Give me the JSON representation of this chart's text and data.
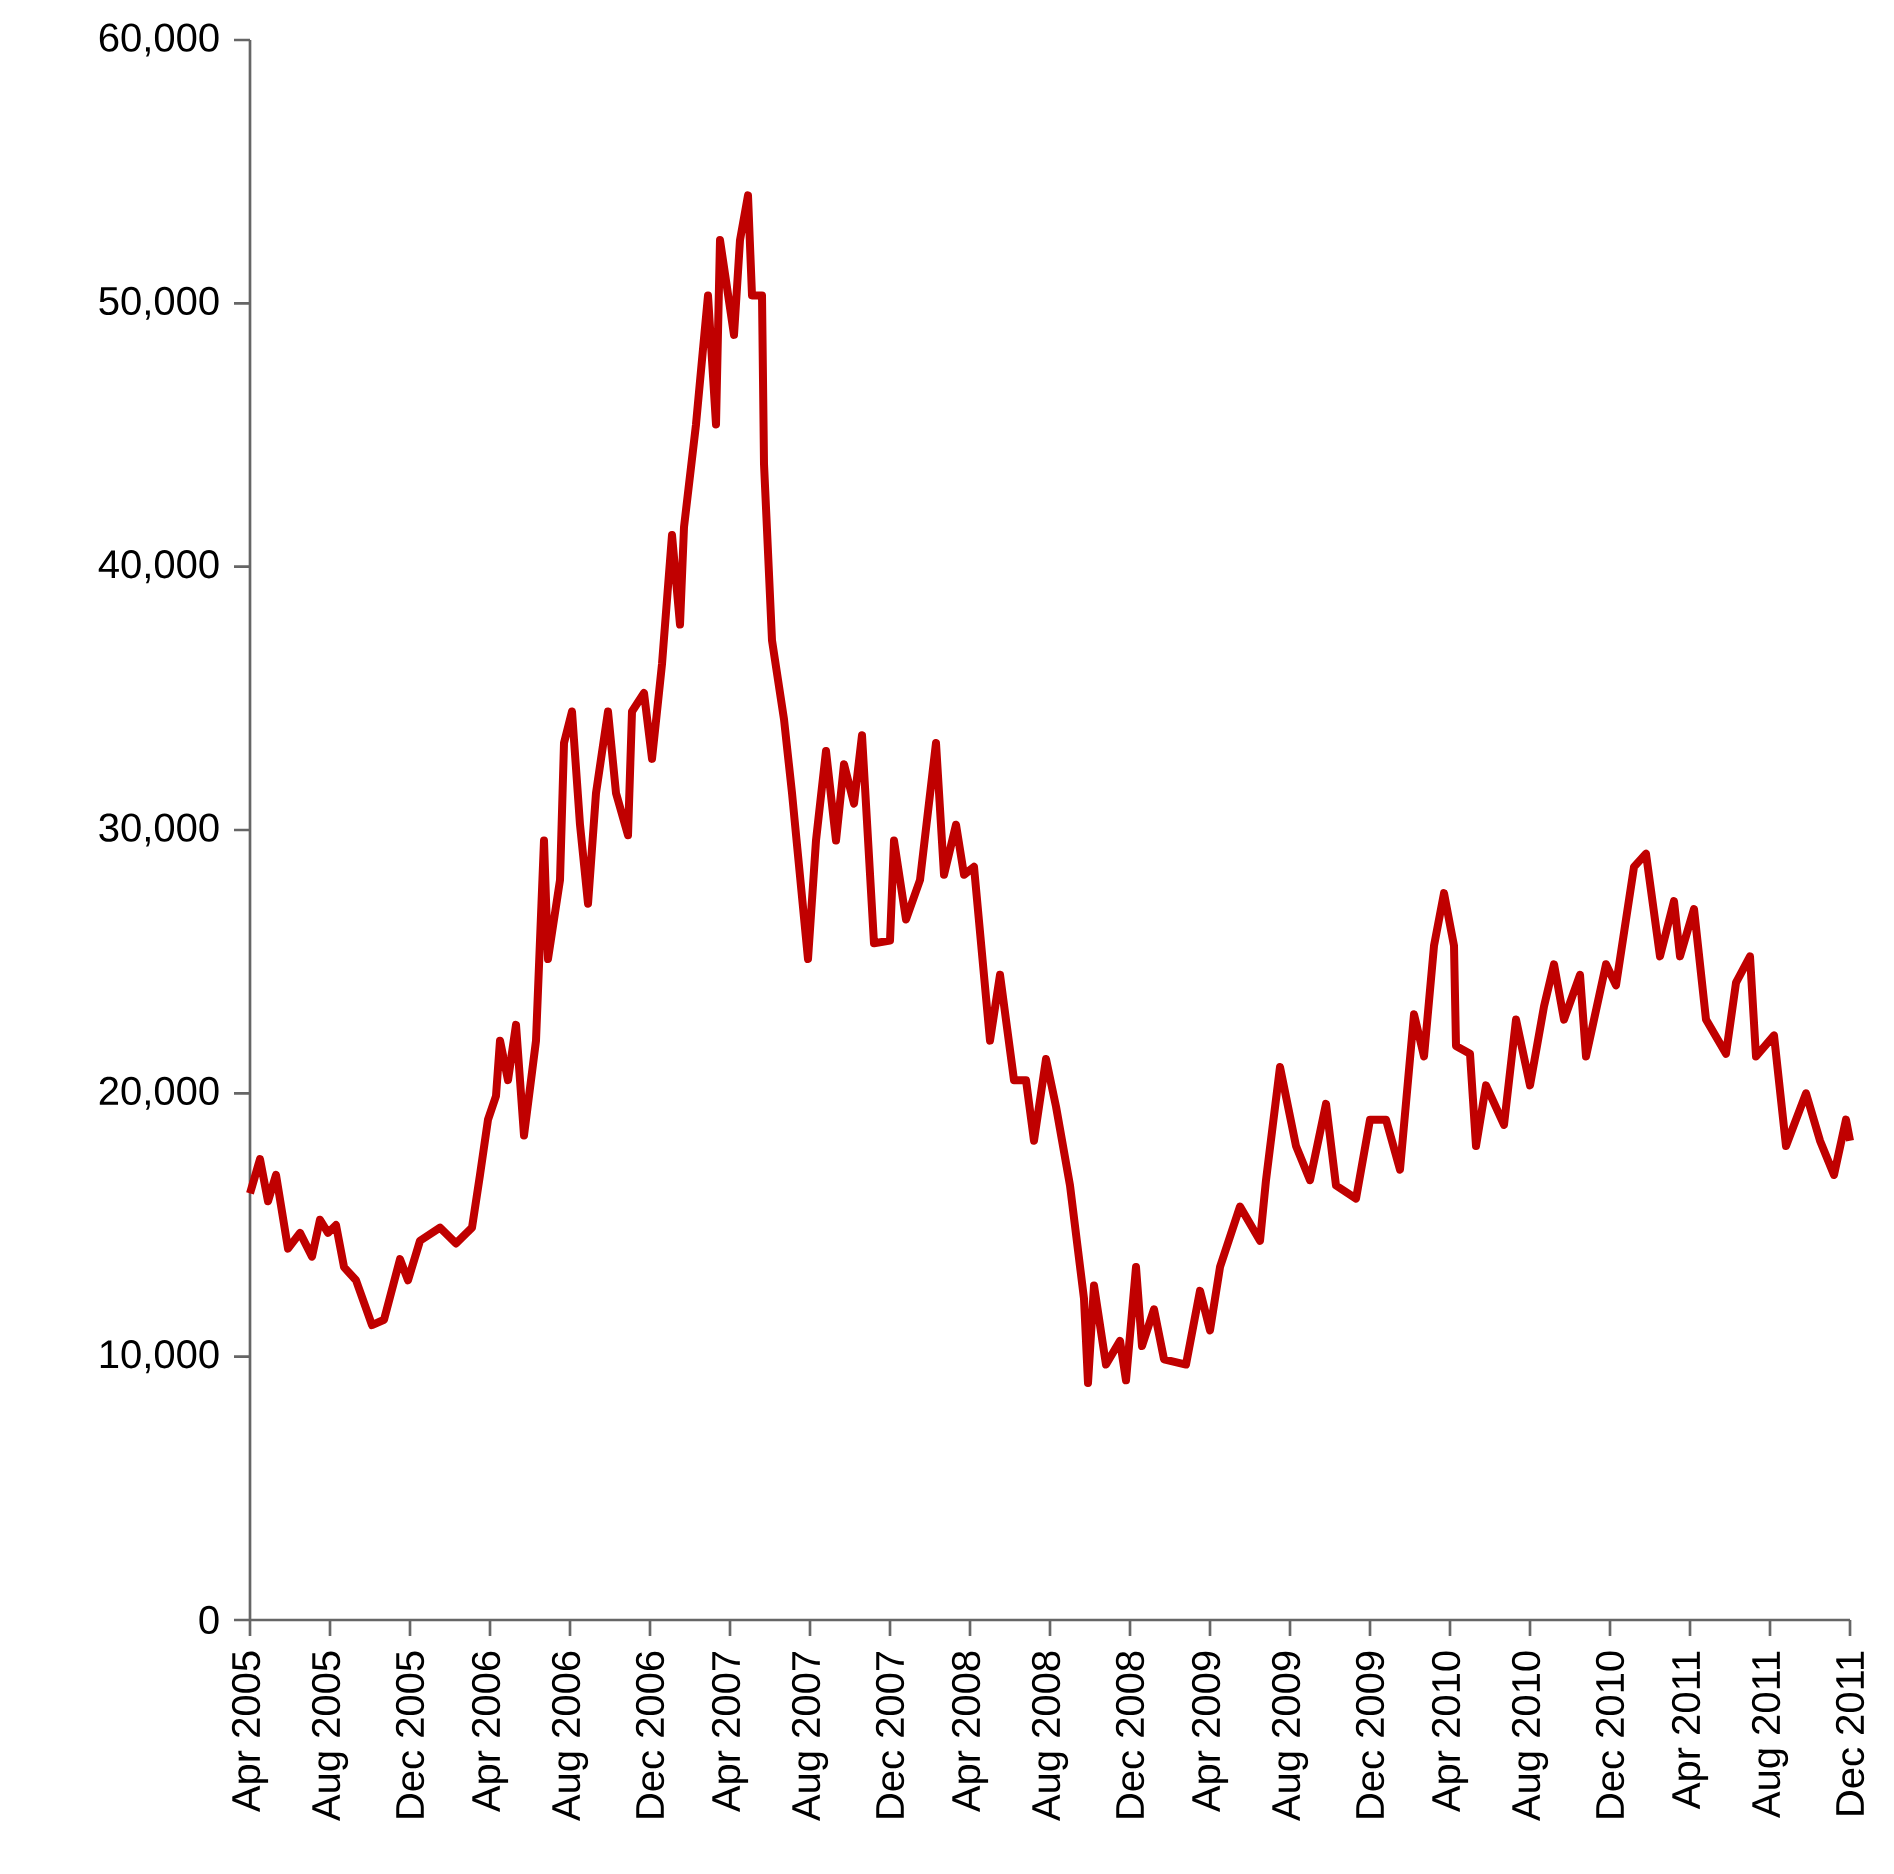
{
  "chart_data": {
    "type": "line",
    "color": "#c00000",
    "x": [
      "2005-04-01",
      "2005-04-16",
      "2005-04-28",
      "2005-05-10",
      "2005-05-28",
      "2005-06-16",
      "2005-07-04",
      "2005-07-16",
      "2005-07-28",
      "2005-08-10",
      "2005-08-22",
      "2005-09-10",
      "2005-10-04",
      "2005-10-22",
      "2005-11-16",
      "2005-11-28",
      "2005-12-16",
      "2006-01-16",
      "2006-02-10",
      "2006-03-04",
      "2006-03-16",
      "2006-03-28",
      "2006-04-10",
      "2006-04-16",
      "2006-04-28",
      "2006-05-10",
      "2006-05-22",
      "2006-06-10",
      "2006-06-22",
      "2006-06-28",
      "2006-07-16",
      "2006-07-22",
      "2006-08-04",
      "2006-08-16",
      "2006-08-28",
      "2006-09-10",
      "2006-09-28",
      "2006-10-10",
      "2006-10-28",
      "2006-11-04",
      "2006-11-22",
      "2006-12-04",
      "2006-12-19",
      "2007-01-04",
      "2007-01-16",
      "2007-01-22",
      "2007-02-10",
      "2007-02-28",
      "2007-03-10",
      "2007-03-16",
      "2007-04-07",
      "2007-04-16",
      "2007-04-28",
      "2007-05-04",
      "2007-05-19",
      "2007-05-22",
      "2007-06-04",
      "2007-06-22",
      "2007-07-04",
      "2007-07-28",
      "2007-08-10",
      "2007-08-25",
      "2007-09-10",
      "2007-09-22",
      "2007-10-07",
      "2007-10-19",
      "2007-11-07",
      "2007-12-01",
      "2007-12-07",
      "2007-12-25",
      "2008-01-16",
      "2008-02-10",
      "2008-02-22",
      "2008-03-10",
      "2008-03-22",
      "2008-04-07",
      "2008-05-01",
      "2008-05-16",
      "2008-06-07",
      "2008-06-25",
      "2008-07-07",
      "2008-07-25",
      "2008-08-10",
      "2008-09-01",
      "2008-09-22",
      "2008-09-28",
      "2008-10-07",
      "2008-10-25",
      "2008-11-16",
      "2008-11-25",
      "2008-12-10",
      "2008-12-19",
      "2009-01-07",
      "2009-01-22",
      "2009-02-25",
      "2009-03-16",
      "2009-04-01",
      "2009-04-16",
      "2009-05-16",
      "2009-06-16",
      "2009-06-25",
      "2009-07-16",
      "2009-08-10",
      "2009-09-01",
      "2009-09-25",
      "2009-10-10",
      "2009-11-10",
      "2009-12-01",
      "2009-12-25",
      "2010-01-16",
      "2010-02-07",
      "2010-02-22",
      "2010-03-07",
      "2010-03-22",
      "2010-04-07",
      "2010-04-10",
      "2010-05-01",
      "2010-05-10",
      "2010-05-25",
      "2010-06-22",
      "2010-07-10",
      "2010-08-01",
      "2010-08-22",
      "2010-09-07",
      "2010-09-22",
      "2010-10-16",
      "2010-10-25",
      "2010-11-25",
      "2010-12-10",
      "2011-01-07",
      "2011-01-25",
      "2011-02-16",
      "2011-03-07",
      "2011-03-16",
      "2011-04-07",
      "2011-04-25",
      "2011-05-25",
      "2011-06-10",
      "2011-07-01",
      "2011-07-10",
      "2011-08-07",
      "2011-08-25",
      "2011-09-10",
      "2011-09-25",
      "2011-10-16",
      "2011-11-07",
      "2011-11-25",
      "2011-12-01"
    ],
    "values": [
      16200,
      17500,
      15900,
      16900,
      14100,
      14700,
      13800,
      15200,
      14700,
      15000,
      13400,
      12900,
      11200,
      11400,
      13700,
      12900,
      14400,
      14900,
      14300,
      14900,
      16900,
      19000,
      19900,
      22000,
      20500,
      22600,
      18400,
      22000,
      29600,
      25100,
      28100,
      33300,
      34500,
      30200,
      27200,
      31400,
      34500,
      31400,
      29800,
      34500,
      35200,
      32700,
      36300,
      41200,
      37800,
      41500,
      45400,
      50300,
      45400,
      52400,
      48800,
      52400,
      54100,
      50300,
      50300,
      43900,
      37200,
      34200,
      31400,
      25100,
      29600,
      33000,
      29600,
      32500,
      31000,
      33600,
      25700,
      25800,
      29600,
      26600,
      28100,
      33300,
      28300,
      30200,
      28300,
      28600,
      22000,
      24500,
      20500,
      20500,
      18200,
      21300,
      19500,
      16500,
      12200,
      9000,
      12700,
      9700,
      10600,
      9100,
      13400,
      10400,
      11800,
      9900,
      9700,
      12500,
      11000,
      13400,
      15700,
      14400,
      16700,
      21000,
      18000,
      16700,
      19600,
      16500,
      16000,
      19000,
      19000,
      17100,
      23000,
      21400,
      25600,
      27600,
      25600,
      21800,
      21500,
      18000,
      20300,
      18800,
      22800,
      20300,
      23300,
      24900,
      22800,
      24500,
      21400,
      24900,
      24100,
      28600,
      29100,
      25200,
      27300,
      25200,
      27000,
      22800,
      21500,
      24200,
      25200,
      21400,
      22200,
      18000,
      19000,
      20000,
      18200,
      16900,
      19000,
      18200
    ],
    "xlim": [
      "2005-04",
      "2011-12"
    ],
    "xticks": [
      {
        "value": "2005-04",
        "label": "Apr 2005"
      },
      {
        "value": "2005-08",
        "label": "Aug 2005"
      },
      {
        "value": "2005-12",
        "label": "Dec 2005"
      },
      {
        "value": "2006-04",
        "label": "Apr 2006"
      },
      {
        "value": "2006-08",
        "label": "Aug 2006"
      },
      {
        "value": "2006-12",
        "label": "Dec 2006"
      },
      {
        "value": "2007-04",
        "label": "Apr 2007"
      },
      {
        "value": "2007-08",
        "label": "Aug 2007"
      },
      {
        "value": "2007-12",
        "label": "Dec 2007"
      },
      {
        "value": "2008-04",
        "label": "Apr 2008"
      },
      {
        "value": "2008-08",
        "label": "Aug 2008"
      },
      {
        "value": "2008-12",
        "label": "Dec 2008"
      },
      {
        "value": "2009-04",
        "label": "Apr 2009"
      },
      {
        "value": "2009-08",
        "label": "Aug 2009"
      },
      {
        "value": "2009-12",
        "label": "Dec 2009"
      },
      {
        "value": "2010-04",
        "label": "Apr 2010"
      },
      {
        "value": "2010-08",
        "label": "Aug 2010"
      },
      {
        "value": "2010-12",
        "label": "Dec 2010"
      },
      {
        "value": "2011-04",
        "label": "Apr 2011"
      },
      {
        "value": "2011-08",
        "label": "Aug 2011"
      },
      {
        "value": "2011-12",
        "label": "Dec 2011"
      }
    ],
    "ylim": [
      0,
      60000
    ],
    "yticks": [
      0,
      {
        "value": 10000,
        "label": "10,000"
      },
      {
        "value": 20000,
        "label": "20,000"
      },
      {
        "value": 30000,
        "label": "30,000"
      },
      {
        "value": 40000,
        "label": "40,000"
      },
      {
        "value": 50000,
        "label": "50,000"
      },
      {
        "value": 60000,
        "label": "60,000"
      }
    ],
    "line_style": "solid"
  }
}
